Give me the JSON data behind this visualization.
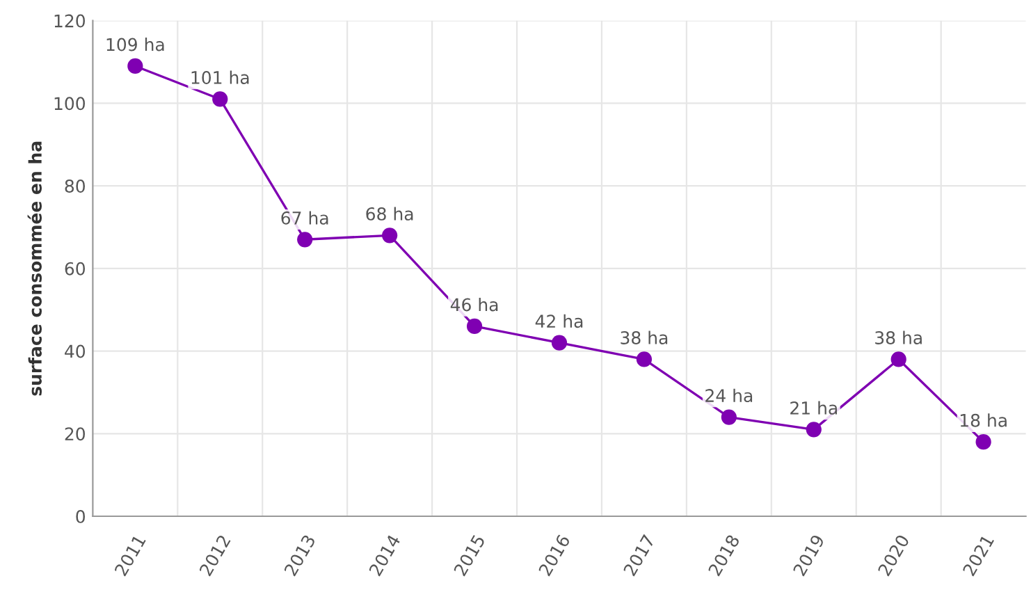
{
  "chart_data": {
    "type": "line",
    "ylabel": "surface consommée en ha",
    "categories": [
      "2011",
      "2012",
      "2013",
      "2014",
      "2015",
      "2016",
      "2017",
      "2018",
      "2019",
      "2020",
      "2021"
    ],
    "series": [
      {
        "color": "#7f00b2",
        "values": [
          109,
          101,
          67,
          68,
          46,
          42,
          38,
          24,
          21,
          38,
          18
        ],
        "value_labels": [
          "109 ha",
          "101 ha",
          "67 ha",
          "68 ha",
          "46 ha",
          "42 ha",
          "38 ha",
          "24 ha",
          "21 ha",
          "38 ha",
          "18 ha"
        ]
      }
    ],
    "ylim": [
      0,
      120
    ],
    "yticks": [
      0,
      20,
      40,
      60,
      80,
      100,
      120
    ],
    "grid": true,
    "marker": "circle",
    "line_style": "solid"
  }
}
